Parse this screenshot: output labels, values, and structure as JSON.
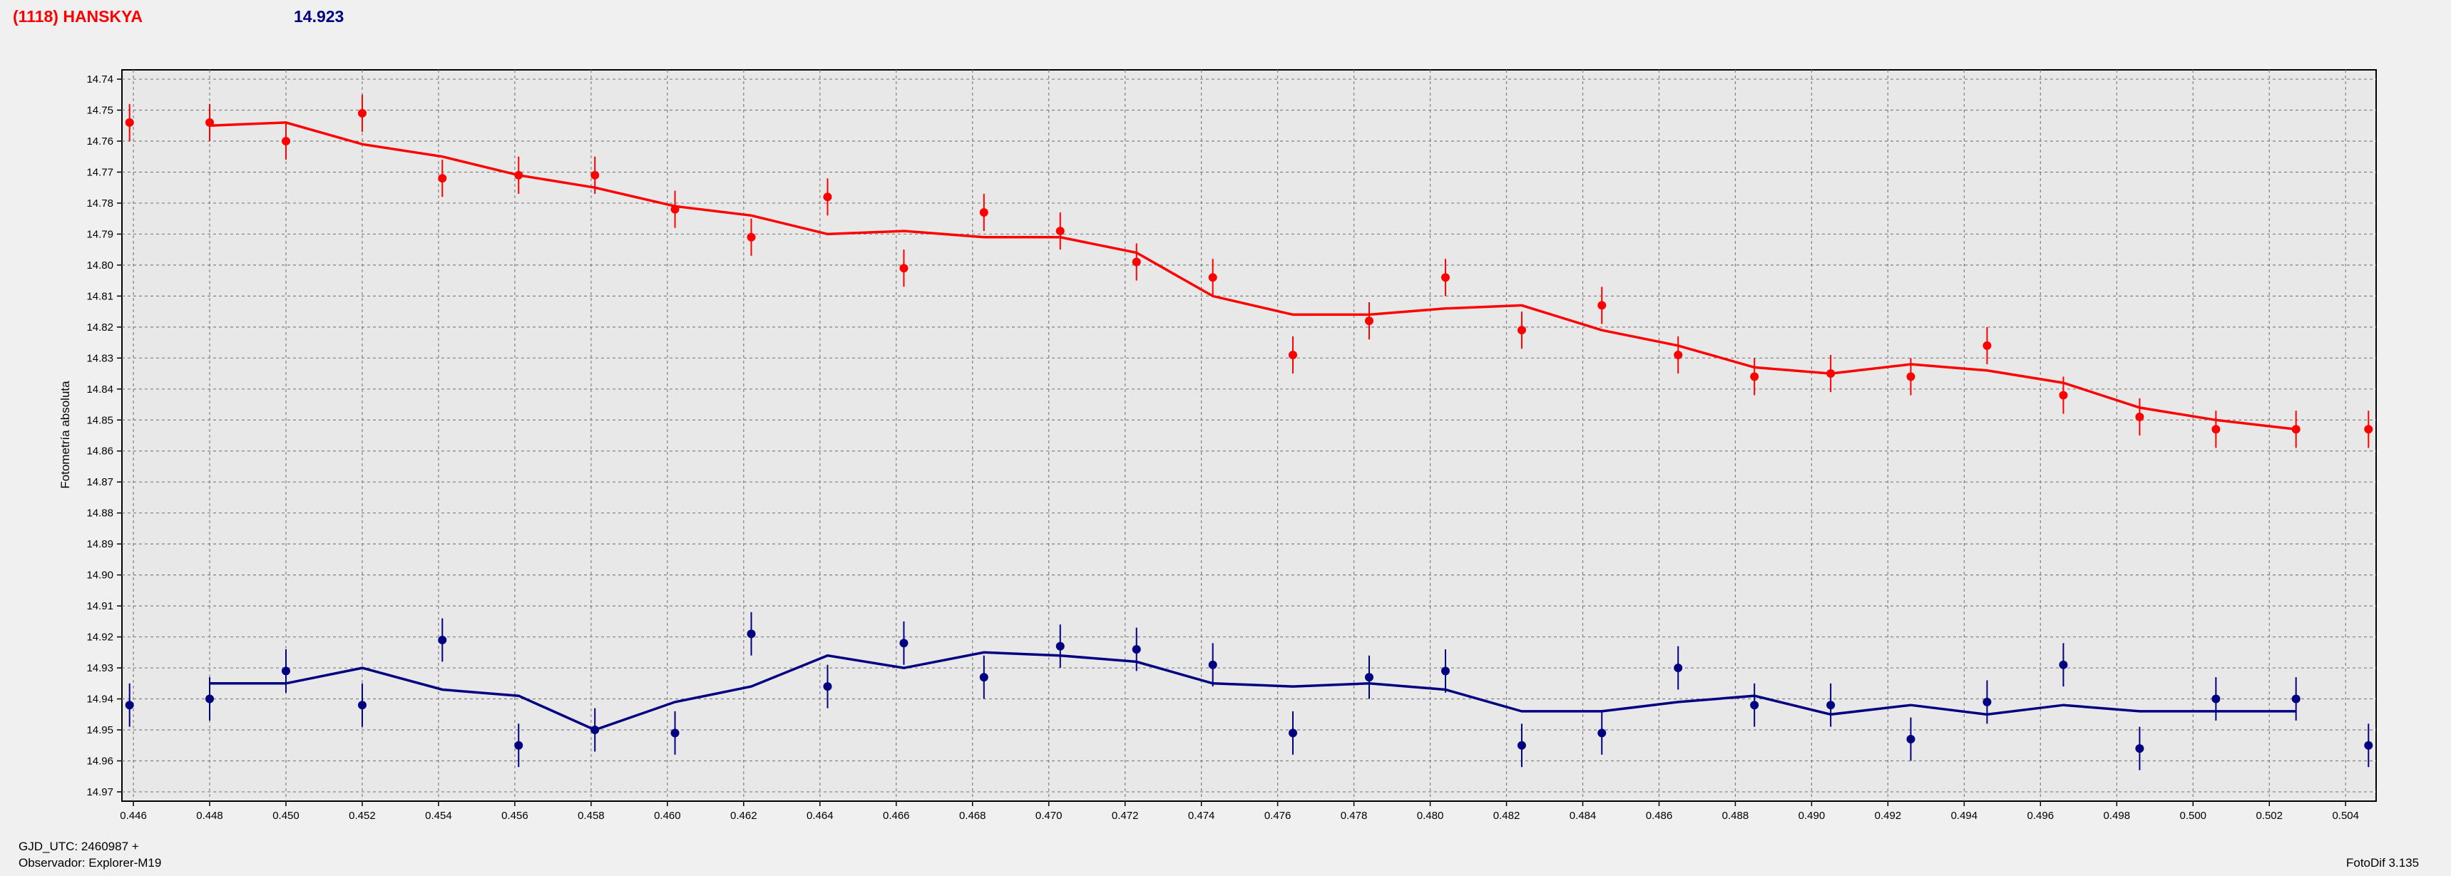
{
  "header": {
    "object_label": "(1118) HANSKYA",
    "magnitude_label": "14.923"
  },
  "footer": {
    "gjd_label": "GJD_UTC: 2460987 +",
    "observer_label": "Observador: Explorer-M19",
    "software_label": "FotoDif 3.135"
  },
  "colors": {
    "background": "#f0f0f0",
    "plot_background": "#e8e8e8",
    "red_series": "#ff0000",
    "blue_series": "#000080",
    "grid": "#808080"
  },
  "chart_data": {
    "type": "scatter",
    "title": "",
    "xlabel": "",
    "ylabel": "Fotometría absoluta",
    "xlim": [
      0.4457,
      0.5048
    ],
    "ylim": [
      14.973,
      14.737
    ],
    "y_inverted": true,
    "grid": true,
    "x_ticks": [
      "0.446",
      "0.448",
      "0.450",
      "0.452",
      "0.454",
      "0.456",
      "0.458",
      "0.460",
      "0.462",
      "0.464",
      "0.466",
      "0.468",
      "0.470",
      "0.472",
      "0.474",
      "0.476",
      "0.478",
      "0.480",
      "0.482",
      "0.484",
      "0.486",
      "0.488",
      "0.490",
      "0.492",
      "0.494",
      "0.496",
      "0.498",
      "0.500",
      "0.502",
      "0.504"
    ],
    "y_ticks": [
      "14.74",
      "14.75",
      "14.76",
      "14.77",
      "14.78",
      "14.79",
      "14.80",
      "14.81",
      "14.82",
      "14.83",
      "14.84",
      "14.85",
      "14.86",
      "14.87",
      "14.88",
      "14.89",
      "14.90",
      "14.91",
      "14.92",
      "14.93",
      "14.94",
      "14.95",
      "14.96",
      "14.97"
    ],
    "series": [
      {
        "color": "#ff0000",
        "x": [
          0.4459,
          0.448,
          0.45,
          0.452,
          0.4541,
          0.4561,
          0.4581,
          0.4602,
          0.4622,
          0.4642,
          0.4662,
          0.4683,
          0.4703,
          0.4723,
          0.4743,
          0.4764,
          0.4784,
          0.4804,
          0.4824,
          0.4845,
          0.4865,
          0.4885,
          0.4905,
          0.4926,
          0.4946,
          0.4966,
          0.4986,
          0.5006,
          0.5027,
          0.5046
        ],
        "y": [
          14.754,
          14.754,
          14.76,
          14.751,
          14.772,
          14.771,
          14.771,
          14.782,
          14.791,
          14.778,
          14.801,
          14.783,
          14.789,
          14.799,
          14.804,
          14.829,
          14.818,
          14.804,
          14.821,
          14.813,
          14.829,
          14.836,
          14.835,
          14.836,
          14.826,
          14.842,
          14.849,
          14.853,
          14.853,
          14.853
        ],
        "err": [
          0.006,
          0.006,
          0.006,
          0.006,
          0.006,
          0.006,
          0.006,
          0.006,
          0.006,
          0.006,
          0.006,
          0.006,
          0.006,
          0.006,
          0.006,
          0.006,
          0.006,
          0.006,
          0.006,
          0.006,
          0.006,
          0.006,
          0.006,
          0.006,
          0.006,
          0.006,
          0.006,
          0.006,
          0.006,
          0.006
        ],
        "fit_x": [
          0.448,
          0.45,
          0.452,
          0.4541,
          0.4561,
          0.4581,
          0.4602,
          0.4622,
          0.4642,
          0.4662,
          0.4683,
          0.4703,
          0.4723,
          0.4743,
          0.4764,
          0.4784,
          0.4804,
          0.4824,
          0.4845,
          0.4865,
          0.4885,
          0.4905,
          0.4926,
          0.4946,
          0.4966,
          0.4986,
          0.5006,
          0.5027
        ],
        "fit_y": [
          14.755,
          14.754,
          14.761,
          14.765,
          14.771,
          14.775,
          14.781,
          14.784,
          14.79,
          14.789,
          14.791,
          14.791,
          14.796,
          14.81,
          14.816,
          14.816,
          14.814,
          14.813,
          14.821,
          14.826,
          14.833,
          14.835,
          14.832,
          14.834,
          14.838,
          14.846,
          14.85,
          14.853
        ]
      },
      {
        "color": "#000080",
        "x": [
          0.4459,
          0.448,
          0.45,
          0.452,
          0.4541,
          0.4561,
          0.4581,
          0.4602,
          0.4622,
          0.4642,
          0.4662,
          0.4683,
          0.4703,
          0.4723,
          0.4743,
          0.4764,
          0.4784,
          0.4804,
          0.4824,
          0.4845,
          0.4865,
          0.4885,
          0.4905,
          0.4926,
          0.4946,
          0.4966,
          0.4986,
          0.5006,
          0.5027,
          0.5046
        ],
        "y": [
          14.942,
          14.94,
          14.931,
          14.942,
          14.921,
          14.955,
          14.95,
          14.951,
          14.919,
          14.936,
          14.922,
          14.933,
          14.923,
          14.924,
          14.929,
          14.951,
          14.933,
          14.931,
          14.955,
          14.951,
          14.93,
          14.942,
          14.942,
          14.953,
          14.941,
          14.929,
          14.956,
          14.94,
          14.94,
          14.955
        ],
        "err": [
          0.007,
          0.007,
          0.007,
          0.007,
          0.007,
          0.007,
          0.007,
          0.007,
          0.007,
          0.007,
          0.007,
          0.007,
          0.007,
          0.007,
          0.007,
          0.007,
          0.007,
          0.007,
          0.007,
          0.007,
          0.007,
          0.007,
          0.007,
          0.007,
          0.007,
          0.007,
          0.007,
          0.007,
          0.007,
          0.007
        ],
        "fit_x": [
          0.448,
          0.45,
          0.452,
          0.4541,
          0.4561,
          0.4581,
          0.4602,
          0.4622,
          0.4642,
          0.4662,
          0.4683,
          0.4703,
          0.4723,
          0.4743,
          0.4764,
          0.4784,
          0.4804,
          0.4824,
          0.4845,
          0.4865,
          0.4885,
          0.4905,
          0.4926,
          0.4946,
          0.4966,
          0.4986,
          0.5006,
          0.5027
        ],
        "fit_y": [
          14.935,
          14.935,
          14.93,
          14.937,
          14.939,
          14.95,
          14.941,
          14.936,
          14.926,
          14.93,
          14.925,
          14.926,
          14.928,
          14.935,
          14.936,
          14.935,
          14.937,
          14.944,
          14.944,
          14.941,
          14.939,
          14.945,
          14.942,
          14.945,
          14.942,
          14.944,
          14.944,
          14.944
        ]
      }
    ]
  }
}
